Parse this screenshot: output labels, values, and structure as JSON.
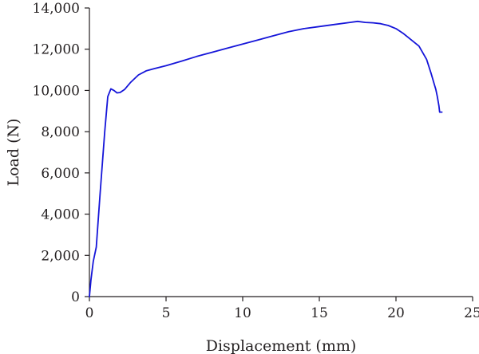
{
  "chart_data": {
    "type": "line",
    "title": "",
    "xlabel": "Displacement (mm)",
    "ylabel": "Load (N)",
    "xlim": [
      0,
      25
    ],
    "ylim": [
      0,
      14000
    ],
    "x_ticks": [
      0,
      5,
      10,
      15,
      20,
      25
    ],
    "y_ticks": [
      0,
      2000,
      4000,
      6000,
      8000,
      10000,
      12000,
      14000
    ],
    "x_tick_labels": [
      "0",
      "5",
      "10",
      "15",
      "20",
      "25"
    ],
    "y_tick_labels": [
      "0",
      "2,000",
      "4,000",
      "6,000",
      "8,000",
      "10,000",
      "12,000",
      "14,000"
    ],
    "grid": false,
    "legend": "none",
    "series": [
      {
        "color": "#1515d9",
        "x": [
          0,
          0.1,
          0.25,
          0.45,
          0.7,
          1.0,
          1.2,
          1.4,
          1.6,
          1.8,
          2.0,
          2.3,
          2.7,
          3.2,
          3.7,
          4.2,
          5.0,
          6.0,
          7.0,
          8.0,
          9.0,
          10.0,
          11.0,
          12.0,
          13.0,
          14.0,
          15.0,
          16.0,
          17.0,
          17.5,
          18.0,
          18.5,
          19.0,
          19.5,
          20.0,
          20.5,
          21.0,
          21.5,
          22.0,
          22.3,
          22.5,
          22.6,
          22.7,
          22.8,
          22.85,
          23.0
        ],
        "y": [
          0,
          800,
          1700,
          2400,
          5000,
          8000,
          9700,
          10080,
          10000,
          9880,
          9900,
          10050,
          10400,
          10750,
          10950,
          11050,
          11200,
          11420,
          11650,
          11850,
          12050,
          12250,
          12450,
          12650,
          12850,
          13000,
          13100,
          13200,
          13300,
          13350,
          13300,
          13280,
          13240,
          13150,
          13000,
          12750,
          12450,
          12150,
          11500,
          10800,
          10300,
          10050,
          9700,
          9250,
          8950,
          8950
        ]
      }
    ]
  }
}
